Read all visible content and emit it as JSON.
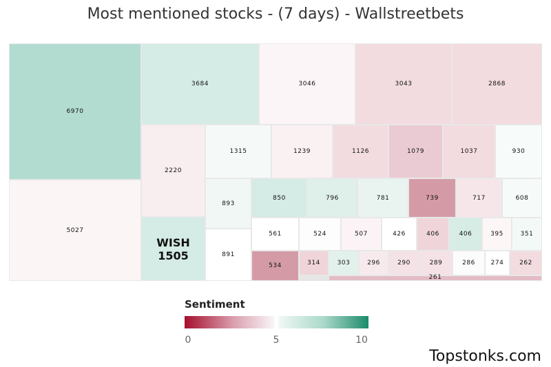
{
  "chart_data": {
    "type": "treemap",
    "title": "Most mentioned stocks - (7 days) - Wallstreetbets",
    "value_label": "mentions",
    "legend": {
      "title": "Sentiment",
      "min": 0,
      "mid": 5,
      "max": 10,
      "ticks": [
        "0",
        "5",
        "10"
      ],
      "color_low": "#a50f2d",
      "color_mid": "#ffffff",
      "color_high": "#1b8b6a"
    },
    "items": [
      {
        "value": 6970,
        "color": "#b3dcd1"
      },
      {
        "value": 5027,
        "color": "#fbf5f6"
      },
      {
        "value": 3684,
        "color": "#d5ebe5"
      },
      {
        "value": 3046,
        "color": "#fcf5f7"
      },
      {
        "value": 3043,
        "color": "#f2dce0"
      },
      {
        "value": 2868,
        "color": "#f2dce0"
      },
      {
        "value": 2220,
        "color": "#f8eef0"
      },
      {
        "value": 1505,
        "label": "WISH",
        "color": "#d5ebe5",
        "highlight": true
      },
      {
        "value": 1315,
        "color": "#f5faf8"
      },
      {
        "value": 1239,
        "color": "#faf1f3"
      },
      {
        "value": 1126,
        "color": "#f2dce0"
      },
      {
        "value": 1079,
        "color": "#ebcbd3"
      },
      {
        "value": 1037,
        "color": "#f2dce0"
      },
      {
        "value": 930,
        "color": "#f7fbfa"
      },
      {
        "value": 893,
        "color": "#f0f7f5"
      },
      {
        "value": 891,
        "color": "#ffffff"
      },
      {
        "value": 850,
        "color": "#d5ebe5"
      },
      {
        "value": 796,
        "color": "#dfefea"
      },
      {
        "value": 781,
        "color": "#e9f4f0"
      },
      {
        "value": 739,
        "color": "#d49ba7"
      },
      {
        "value": 717,
        "color": "#f6e6ea"
      },
      {
        "value": 608,
        "color": "#f6fbf9"
      },
      {
        "value": 561,
        "color": "#ffffff"
      },
      {
        "value": 524,
        "color": "#fdfdfd"
      },
      {
        "value": 507,
        "color": "#fbf3f5"
      },
      {
        "value": 426,
        "color": "#ffffff"
      },
      {
        "value": 406,
        "color": "#efd5da"
      },
      {
        "value": 406,
        "color": "#d6ece5"
      },
      {
        "value": 395,
        "color": "#fcf6f7"
      },
      {
        "value": 351,
        "color": "#f3f9f7"
      },
      {
        "value": 534,
        "color": "#d49ba7"
      },
      {
        "value": 314,
        "color": "#efd5da"
      },
      {
        "value": 303,
        "color": "#e2f1ec"
      },
      {
        "value": 296,
        "color": "#f7eaed"
      },
      {
        "value": 290,
        "color": "#f4e2e6"
      },
      {
        "value": 289,
        "color": "#f4e2e6"
      },
      {
        "value": 286,
        "color": "#fcfcfc"
      },
      {
        "value": 274,
        "color": "#ffffff"
      },
      {
        "value": 262,
        "color": "#f2dce0"
      },
      {
        "value": 261,
        "color": "#e3bcc5"
      }
    ]
  },
  "watermark": "Topstonks.com"
}
